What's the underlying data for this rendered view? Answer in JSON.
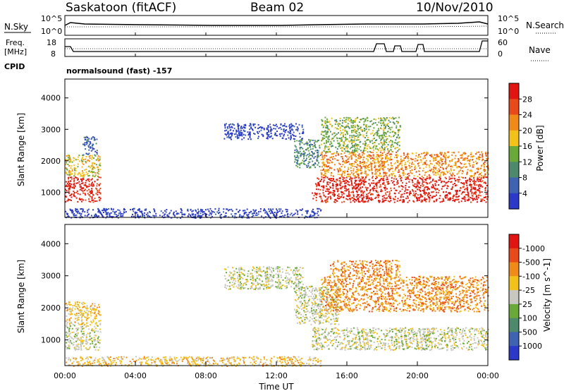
{
  "header": {
    "title": "Saskatoon (fitACF)",
    "beam": "Beam 02",
    "date": "10/Nov/2010"
  },
  "top_panel": {
    "left_label": "N.Sky",
    "right_label": "N.Search",
    "ticks_left": [
      "10^5",
      "10^0"
    ],
    "ticks_right": [
      "10^5",
      "10^0"
    ]
  },
  "freq_panel": {
    "left_label_1": "Freq.",
    "left_label_2": "[MHz]",
    "left_ticks": [
      "18",
      "8"
    ],
    "right_ticks": [
      "60",
      "0"
    ],
    "right_label": "Nave",
    "cpid_label": "CPID",
    "mode_text": "normalsound (fast) -157"
  },
  "chart_data": [
    {
      "type": "heatmap",
      "name": "power",
      "ylabel": "Slant Range [km]",
      "xlabel": "",
      "xlim": [
        0,
        24
      ],
      "ylim": [
        200,
        4600
      ],
      "yticks": [
        1000,
        2000,
        3000,
        4000
      ],
      "colorbar": {
        "label": "Power [dB]",
        "ticks": [
          "4",
          "8",
          "12",
          "16",
          "20",
          "24",
          "28"
        ],
        "colors": [
          "#2b38c8",
          "#3f63b0",
          "#4c8a6b",
          "#6aa83a",
          "#f3c21a",
          "#f08a18",
          "#e84a1a",
          "#e01410"
        ]
      },
      "regions": [
        {
          "x0": 0.0,
          "x1": 2.0,
          "y0": 700,
          "y1": 1500,
          "level": 7
        },
        {
          "x0": 0.0,
          "x1": 2.0,
          "y0": 1500,
          "y1": 2200,
          "level": 4
        },
        {
          "x0": 1.0,
          "x1": 1.8,
          "y0": 2200,
          "y1": 2800,
          "level": 1
        },
        {
          "x0": 0.0,
          "x1": 14.5,
          "y0": 200,
          "y1": 500,
          "level": 0
        },
        {
          "x0": 9.0,
          "x1": 13.5,
          "y0": 2700,
          "y1": 3200,
          "level": 0
        },
        {
          "x0": 13.0,
          "x1": 14.5,
          "y0": 1800,
          "y1": 2700,
          "level": 2
        },
        {
          "x0": 14.0,
          "x1": 24.0,
          "y0": 700,
          "y1": 1500,
          "level": 7
        },
        {
          "x0": 14.5,
          "x1": 24.0,
          "y0": 1500,
          "y1": 2300,
          "level": 5
        },
        {
          "x0": 14.5,
          "x1": 19.0,
          "y0": 2300,
          "y1": 3400,
          "level": 3
        }
      ]
    },
    {
      "type": "heatmap",
      "name": "velocity",
      "ylabel": "Slant Range [km]",
      "xlabel": "Time UT",
      "xlim": [
        0,
        24
      ],
      "ylim": [
        200,
        4600
      ],
      "yticks": [
        1000,
        2000,
        3000,
        4000
      ],
      "xticks": [
        "00:00",
        "04:00",
        "08:00",
        "12:00",
        "16:00",
        "20:00",
        "00:00"
      ],
      "colorbar": {
        "label": "Velocity [m s^-1]",
        "ticks": [
          "1000",
          "500",
          "100",
          "25",
          "-25",
          "-100",
          "-500",
          "-1000"
        ],
        "colors": [
          "#2b38c8",
          "#3f63b0",
          "#4c8a6b",
          "#6aa83a",
          "#c8c8c0",
          "#f3c21a",
          "#f08a18",
          "#e84a1a",
          "#e01410"
        ]
      },
      "regions": [
        {
          "x0": 0.0,
          "x1": 2.0,
          "y0": 700,
          "y1": 1500,
          "level": 4
        },
        {
          "x0": 0.0,
          "x1": 2.0,
          "y0": 1500,
          "y1": 2200,
          "level": 5
        },
        {
          "x0": 0.0,
          "x1": 14.5,
          "y0": 200,
          "y1": 500,
          "level": 5
        },
        {
          "x0": 9.0,
          "x1": 13.5,
          "y0": 2600,
          "y1": 3300,
          "level": 4
        },
        {
          "x0": 13.0,
          "x1": 15.5,
          "y0": 1500,
          "y1": 2700,
          "level": 4
        },
        {
          "x0": 14.0,
          "x1": 24.0,
          "y0": 700,
          "y1": 1400,
          "level": 4
        },
        {
          "x0": 14.5,
          "x1": 24.0,
          "y0": 1900,
          "y1": 3000,
          "level": 6
        },
        {
          "x0": 15.0,
          "x1": 19.0,
          "y0": 3000,
          "y1": 3500,
          "level": 6
        }
      ]
    }
  ]
}
